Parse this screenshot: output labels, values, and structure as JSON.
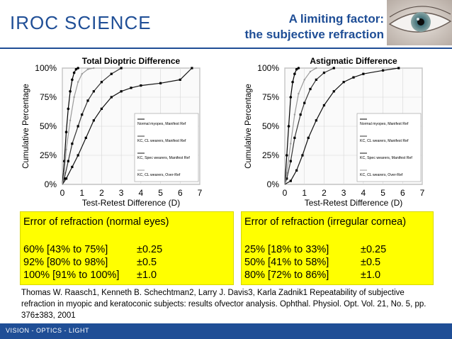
{
  "header": {
    "logo_iroc": "IROC",
    "logo_science": "SCIENCE",
    "title_line1": "A limiting factor:",
    "title_line2": "the subjective refraction"
  },
  "colors": {
    "brand": "#1f4e96",
    "highlight": "#ffff00"
  },
  "chart_data": [
    {
      "type": "line",
      "title": "Total Dioptric Difference",
      "xlabel": "Test-Retest Difference (D)",
      "ylabel": "Cumulative Percentage",
      "x_ticks": [
        "0",
        "1",
        "2",
        "3",
        "4",
        "5",
        "6",
        "7"
      ],
      "y_ticks": [
        "0%",
        "25%",
        "50%",
        "75%",
        "100%"
      ],
      "xlim": [
        0,
        7
      ],
      "ylim": [
        0,
        100
      ],
      "legend_position": "right",
      "series": [
        {
          "name": "Normal myopes, Manifest Ref",
          "x": [
            0.1,
            0.2,
            0.3,
            0.4,
            0.5,
            0.6,
            0.7,
            0.8
          ],
          "y": [
            20,
            45,
            65,
            80,
            90,
            96,
            99,
            100
          ]
        },
        {
          "name": "KC, CL wearers, Manifest Ref",
          "x": [
            0.1,
            0.3,
            0.5,
            0.8,
            1.0,
            1.3,
            1.6,
            2.0,
            2.5,
            3.0
          ],
          "y": [
            5,
            20,
            35,
            50,
            60,
            72,
            80,
            88,
            95,
            100
          ]
        },
        {
          "name": "KC, Spec wearers, Manifest Ref",
          "x": [
            0.2,
            0.5,
            0.8,
            1.2,
            1.6,
            2.0,
            2.5,
            3.0,
            3.5,
            4.0,
            5.0,
            6.0,
            6.6
          ],
          "y": [
            5,
            15,
            25,
            40,
            55,
            65,
            75,
            80,
            83,
            85,
            87,
            90,
            100
          ]
        },
        {
          "name": "KC, CL wearers, Over-Ref",
          "x": [
            0.1,
            0.2,
            0.4,
            0.6,
            0.8,
            1.0,
            1.3,
            1.6
          ],
          "y": [
            10,
            30,
            55,
            75,
            88,
            95,
            99,
            100
          ]
        }
      ]
    },
    {
      "type": "line",
      "title": "Astigmatic Difference",
      "xlabel": "Test-Retest Difference (D)",
      "ylabel": "Cumulative Percentage",
      "x_ticks": [
        "0",
        "1",
        "2",
        "3",
        "4",
        "5",
        "6",
        "7"
      ],
      "y_ticks": [
        "0%",
        "25%",
        "50%",
        "75%",
        "100%"
      ],
      "xlim": [
        0,
        7
      ],
      "ylim": [
        0,
        100
      ],
      "legend_position": "right",
      "series": [
        {
          "name": "Normal myopes, Manifest Ref",
          "x": [
            0.1,
            0.2,
            0.3,
            0.4,
            0.5,
            0.6,
            0.7
          ],
          "y": [
            25,
            50,
            75,
            88,
            95,
            99,
            100
          ]
        },
        {
          "name": "KC, CL wearers, Manifest Ref",
          "x": [
            0.1,
            0.3,
            0.5,
            0.8,
            1.0,
            1.3,
            1.6,
            2.0,
            2.5
          ],
          "y": [
            5,
            20,
            40,
            60,
            70,
            82,
            90,
            96,
            100
          ]
        },
        {
          "name": "KC, Spec wearers, Manifest Ref",
          "x": [
            0.3,
            0.6,
            0.9,
            1.2,
            1.6,
            2.0,
            2.5,
            3.0,
            3.5,
            4.0,
            5.0,
            5.8
          ],
          "y": [
            3,
            12,
            25,
            40,
            55,
            68,
            80,
            88,
            92,
            95,
            98,
            100
          ]
        },
        {
          "name": "KC, CL wearers, Over-Ref",
          "x": [
            0.1,
            0.3,
            0.5,
            0.7,
            1.0,
            1.3,
            1.6
          ],
          "y": [
            10,
            35,
            60,
            78,
            90,
            97,
            100
          ]
        }
      ]
    }
  ],
  "box_left": {
    "heading": "Error of refraction (normal eyes)",
    "rows": [
      {
        "range": "60%  [43% to 75%]",
        "value": "±0.25"
      },
      {
        "range": "92%  [80% to 98%]",
        "value": "±0.5"
      },
      {
        "range": "100% [91% to 100%]",
        "value": "±1.0"
      }
    ]
  },
  "box_right": {
    "heading": "Error of refraction (irregular cornea)",
    "rows": [
      {
        "range": "25%  [18% to 33%]",
        "value": "±0.25"
      },
      {
        "range": "50%  [41% to 58%]",
        "value": "±0.5"
      },
      {
        "range": "80%  [72% to 86%]",
        "value": "±1.0"
      }
    ]
  },
  "citation": "Thomas W. Raasch1, Kenneth B. Schechtman2, Larry J. Davis3, Karla Zadnik1 Repeatability of subjective refraction in myopic and keratoconic subjects: results ofvector analysis. Ophthal. Physiol. Opt. Vol. 21, No. 5, pp. 376±383, 2001",
  "footer": {
    "text": "VISION - OPTICS - LIGHT"
  }
}
